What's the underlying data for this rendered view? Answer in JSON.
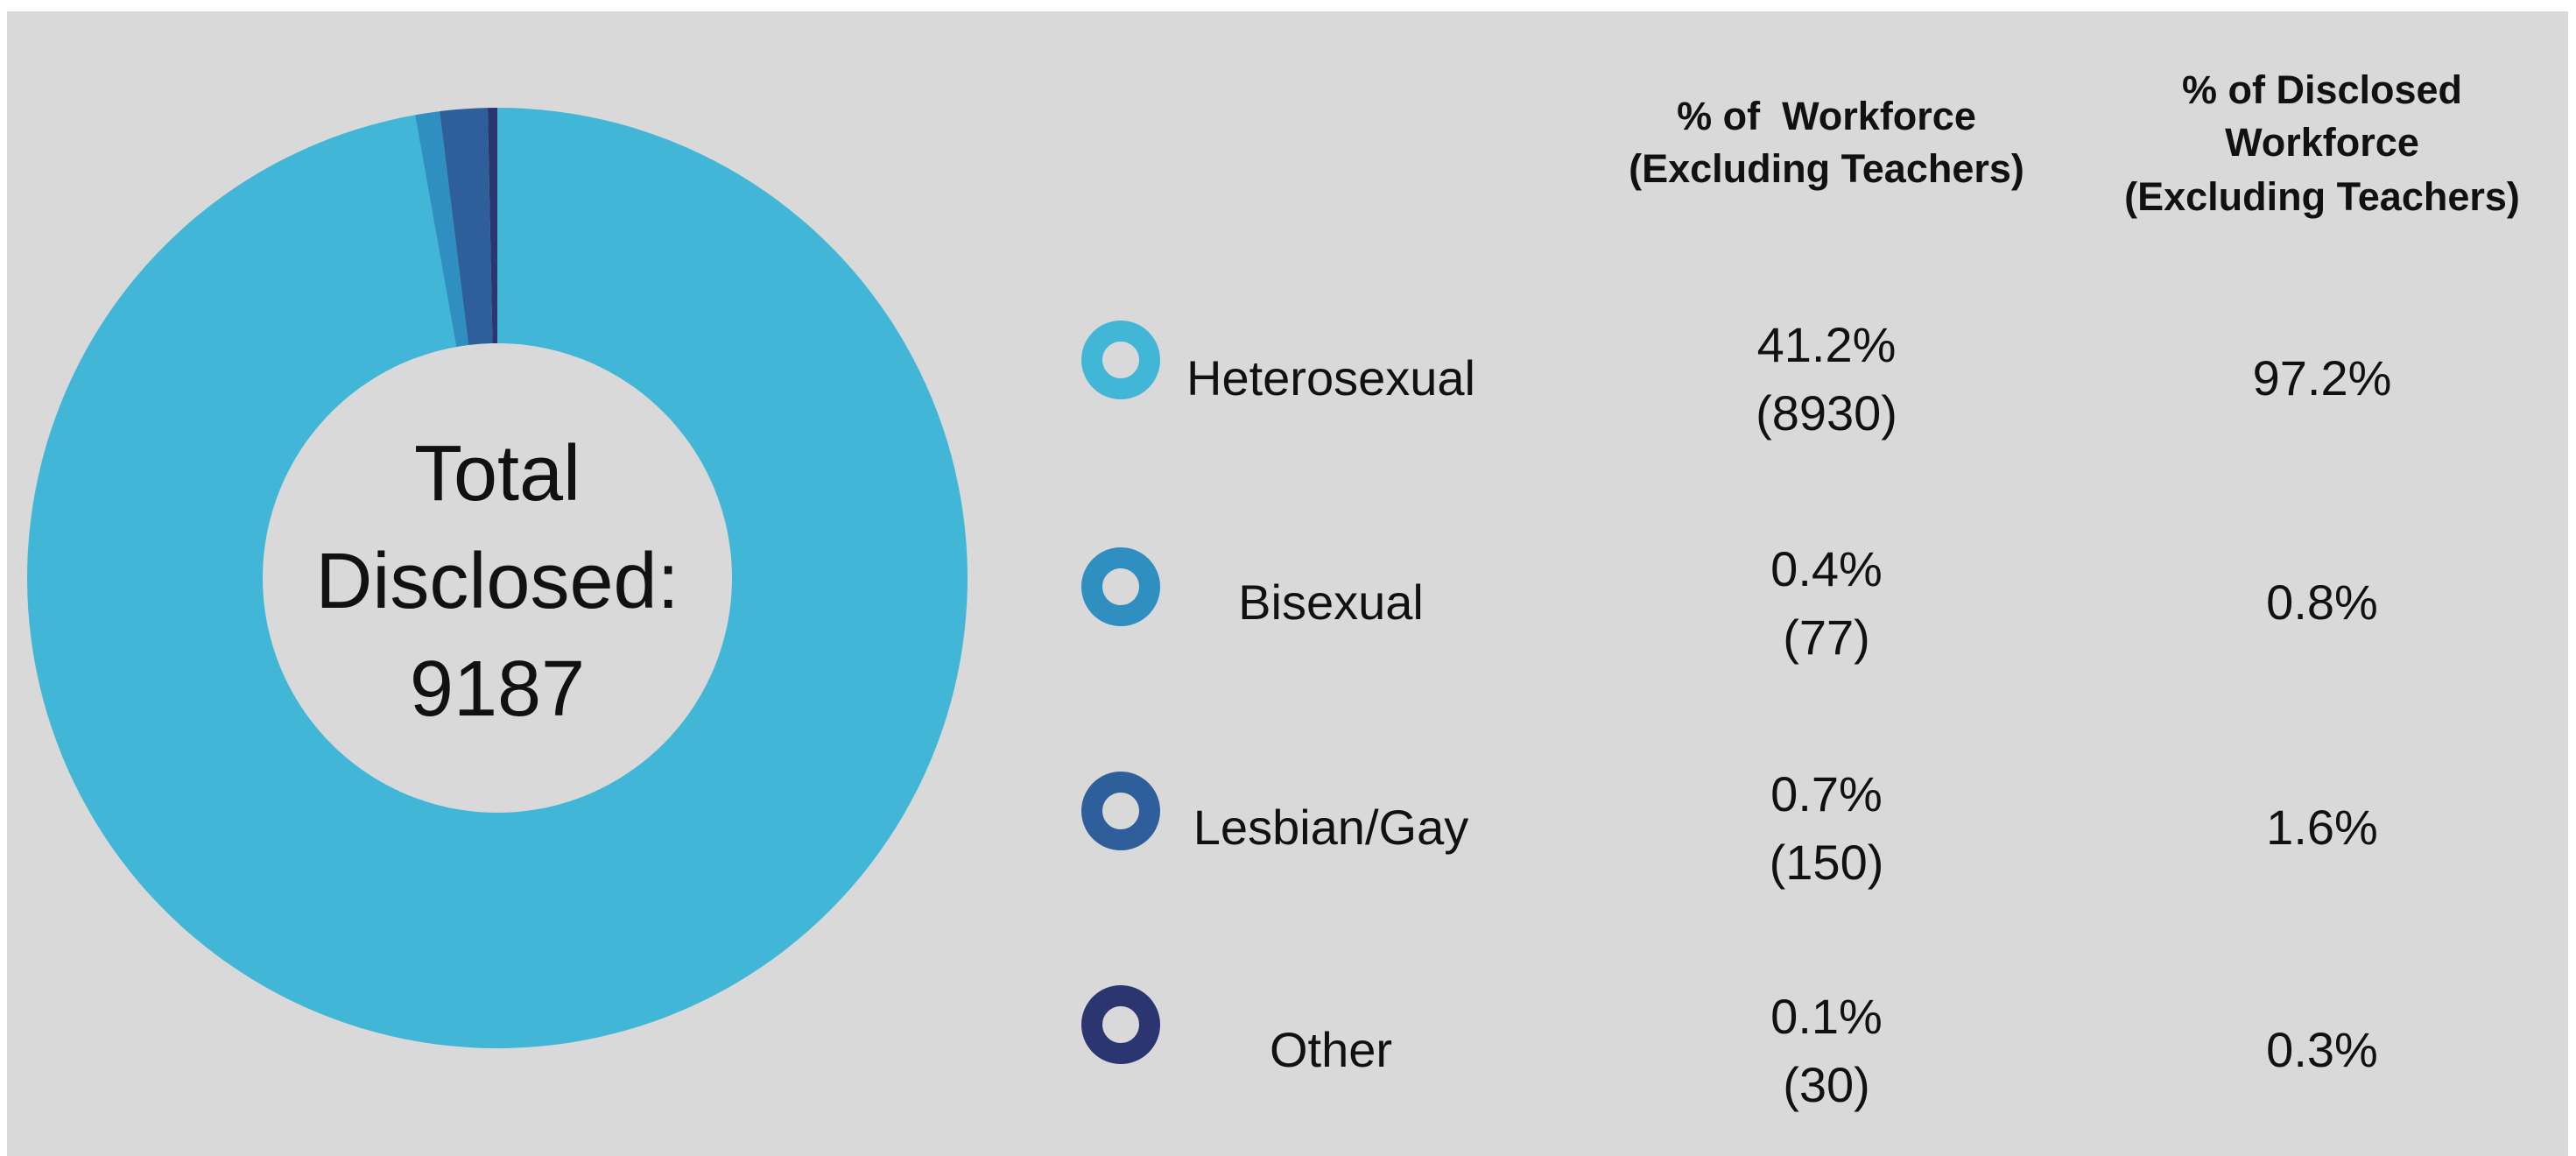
{
  "chart_data": {
    "type": "donut",
    "center_label": [
      "Total",
      "Disclosed:",
      "9187"
    ],
    "headers": [
      [
        "% of  Workforce",
        "(Excluding Teachers)"
      ],
      [
        "% of Disclosed",
        "Workforce",
        "(Excluding Teachers)"
      ]
    ],
    "categories": [
      "Heterosexual",
      "Bisexual",
      "Lesbian/Gay",
      "Other"
    ],
    "colors": [
      "#41b6d6",
      "#2e8fc0",
      "#2e5f9a",
      "#2b3570"
    ],
    "values": [
      8930,
      77,
      150,
      30
    ],
    "value_labels": [
      "(8930)",
      "(77)",
      "(150)",
      "(30)"
    ],
    "workforce_share": {
      "values": [
        41.2,
        0.4,
        0.7,
        0.1
      ],
      "value_labels": [
        "41.2%",
        "0.4%",
        "0.7%",
        "0.1%"
      ]
    },
    "disclosed_share": {
      "values": [
        97.2,
        0.8,
        1.6,
        0.3
      ],
      "value_labels": [
        "97.2%",
        "0.8%",
        "1.6%",
        "0.3%"
      ]
    }
  }
}
